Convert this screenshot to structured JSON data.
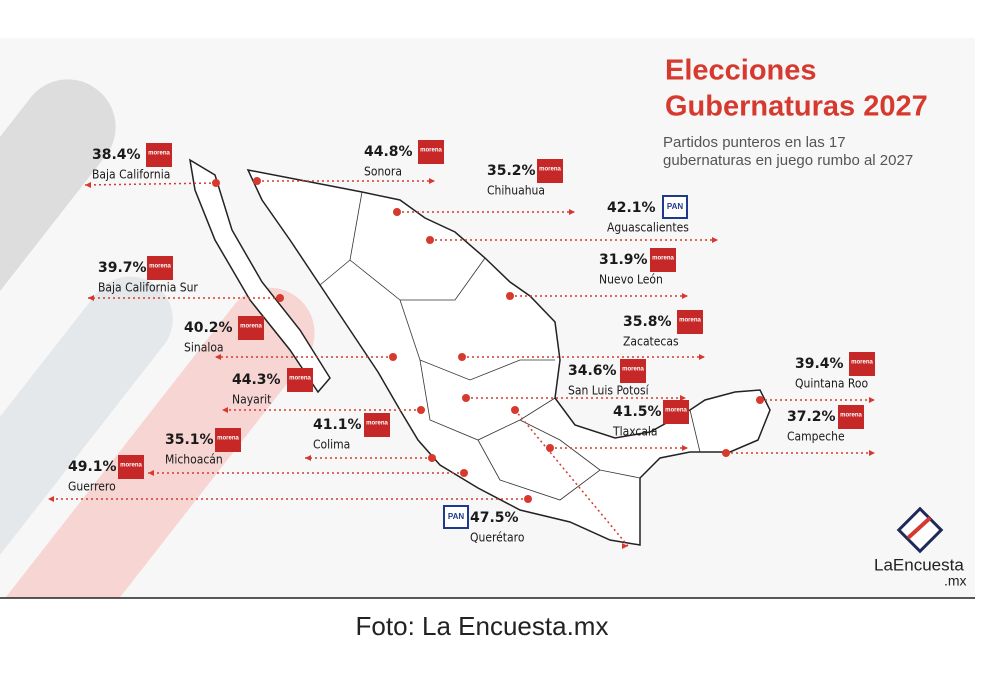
{
  "header": {
    "title_lines": [
      "Elecciones",
      "Gubernaturas 2027"
    ],
    "subtitle_lines": [
      "Partidos punteros en las 17",
      "gubernaturas en juego rumbo al 2027"
    ]
  },
  "states": [
    {
      "pct": "38.4%",
      "party": "morena",
      "name": "Baja California"
    },
    {
      "pct": "44.8%",
      "party": "morena",
      "name": "Sonora"
    },
    {
      "pct": "35.2%",
      "party": "morena",
      "name": "Chihuahua"
    },
    {
      "pct": "42.1%",
      "party": "PAN",
      "name": "Aguascalientes"
    },
    {
      "pct": "31.9%",
      "party": "morena",
      "name": "Nuevo León"
    },
    {
      "pct": "39.7%",
      "party": "morena",
      "name": "Baja California Sur"
    },
    {
      "pct": "35.8%",
      "party": "morena",
      "name": "Zacatecas"
    },
    {
      "pct": "40.2%",
      "party": "morena",
      "name": "Sinaloa"
    },
    {
      "pct": "34.6%",
      "party": "morena",
      "name": "San Luis Potosí"
    },
    {
      "pct": "39.4%",
      "party": "morena",
      "name": "Quintana Roo"
    },
    {
      "pct": "44.3%",
      "party": "morena",
      "name": "Nayarit"
    },
    {
      "pct": "41.5%",
      "party": "morena",
      "name": "Tlaxcala"
    },
    {
      "pct": "37.2%",
      "party": "morena",
      "name": "Campeche"
    },
    {
      "pct": "41.1%",
      "party": "morena",
      "name": "Colima"
    },
    {
      "pct": "35.1%",
      "party": "morena",
      "name": "Michoacán"
    },
    {
      "pct": "49.1%",
      "party": "morena",
      "name": "Guerrero"
    },
    {
      "pct": "47.5%",
      "party": "PAN",
      "name": "Querétaro"
    }
  ],
  "logo": {
    "name": "LaEncuesta",
    "suffix": ".mx"
  },
  "caption": "Foto: La Encuesta.mx"
}
